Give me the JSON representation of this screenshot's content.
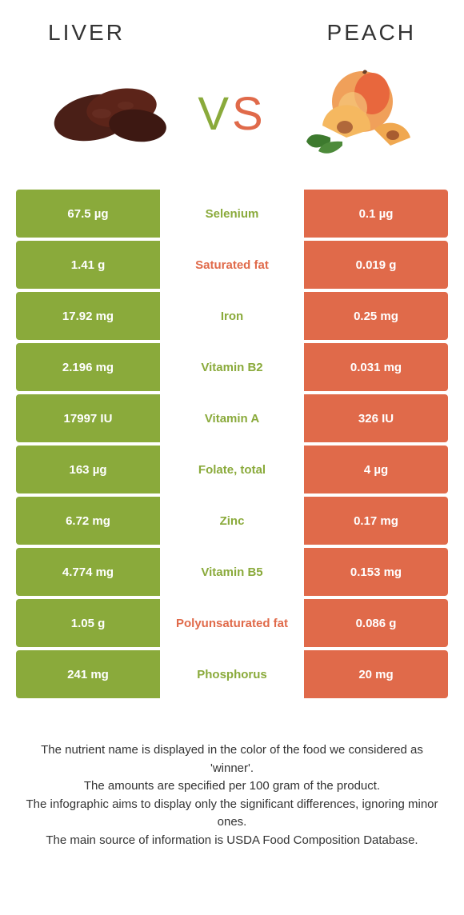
{
  "colors": {
    "left": "#8aaa3b",
    "right": "#e06a4a",
    "bg": "#ffffff",
    "text": "#333333"
  },
  "header": {
    "left": "LIVER",
    "right": "PEACH"
  },
  "vs": {
    "v": "V",
    "s": "S"
  },
  "rows": [
    {
      "left": "67.5 µg",
      "label": "Selenium",
      "right": "0.1 µg",
      "winner": "left"
    },
    {
      "left": "1.41 g",
      "label": "Saturated fat",
      "right": "0.019 g",
      "winner": "right"
    },
    {
      "left": "17.92 mg",
      "label": "Iron",
      "right": "0.25 mg",
      "winner": "left"
    },
    {
      "left": "2.196 mg",
      "label": "Vitamin B2",
      "right": "0.031 mg",
      "winner": "left"
    },
    {
      "left": "17997 IU",
      "label": "Vitamin A",
      "right": "326 IU",
      "winner": "left"
    },
    {
      "left": "163 µg",
      "label": "Folate, total",
      "right": "4 µg",
      "winner": "left"
    },
    {
      "left": "6.72 mg",
      "label": "Zinc",
      "right": "0.17 mg",
      "winner": "left"
    },
    {
      "left": "4.774 mg",
      "label": "Vitamin B5",
      "right": "0.153 mg",
      "winner": "left"
    },
    {
      "left": "1.05 g",
      "label": "Polyunsaturated fat",
      "right": "0.086 g",
      "winner": "right"
    },
    {
      "left": "241 mg",
      "label": "Phosphorus",
      "right": "20 mg",
      "winner": "left"
    }
  ],
  "footer": {
    "line1": "The nutrient name is displayed in the color of the food we considered as 'winner'.",
    "line2": "The amounts are specified per 100 gram of the product.",
    "line3": "The infographic aims to display only the significant differences, ignoring minor ones.",
    "line4": "The main source of information is USDA Food Composition Database."
  }
}
